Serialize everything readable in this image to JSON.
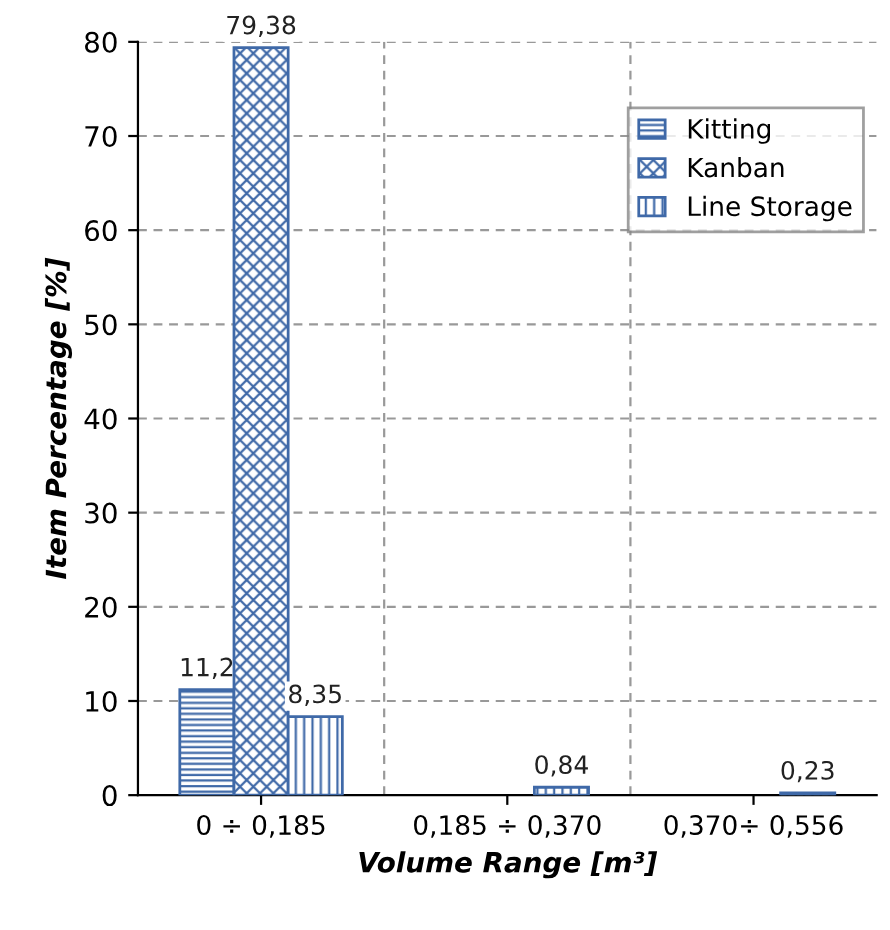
{
  "chart_data": {
    "type": "bar",
    "xlabel": "Volume Range [m³]",
    "ylabel": "Item Percentage [%]",
    "categories": [
      "0 ÷ 0,185",
      "0,185 ÷ 0,370",
      "0,370÷ 0,556"
    ],
    "series": [
      {
        "name": "Kitting",
        "color": "#3f69a8",
        "values": [
          11.2,
          null,
          null
        ],
        "value_labels": [
          "11,2",
          null,
          null
        ]
      },
      {
        "name": "Kanban",
        "color": "#3f69a8",
        "values": [
          79.38,
          null,
          null
        ],
        "value_labels": [
          "79,38",
          null,
          null
        ]
      },
      {
        "name": "Line Storage",
        "color": "#3f69a8",
        "values": [
          8.35,
          0.84,
          0.23
        ],
        "value_labels": [
          "8,35",
          "0,84",
          "0,23"
        ]
      }
    ],
    "ylim": [
      0,
      80
    ],
    "yticks": [
      0,
      10,
      20,
      30,
      40,
      50,
      60,
      70,
      80
    ],
    "grid": true,
    "legend": "top right"
  }
}
